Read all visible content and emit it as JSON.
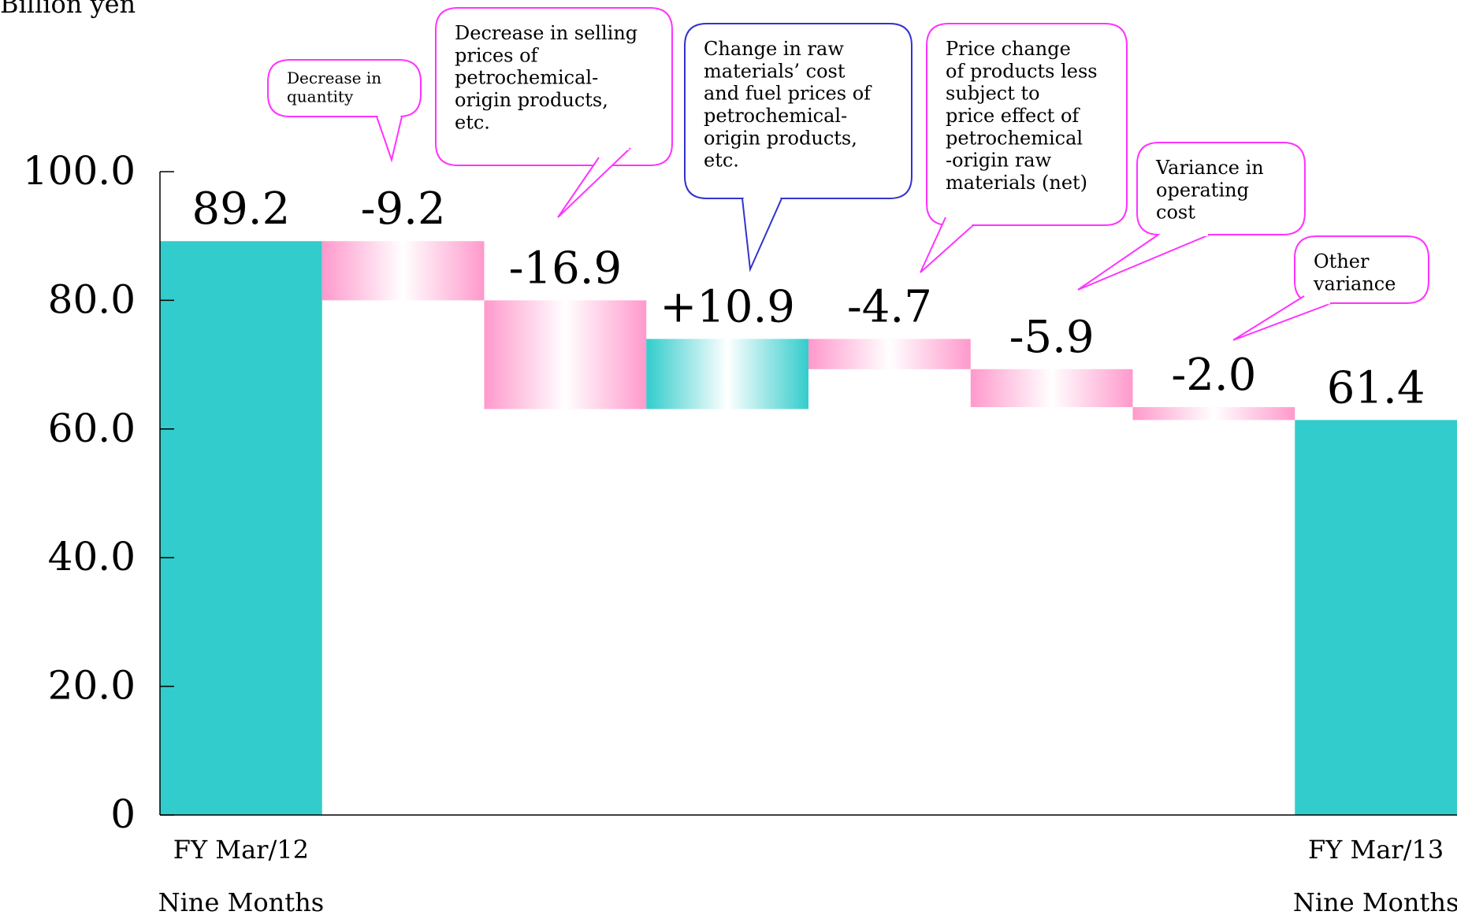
{
  "chart_data": {
    "type": "waterfall",
    "unit_label": "Billion yen",
    "ylim": [
      0,
      100
    ],
    "y_ticks": [
      "0",
      "20.0",
      "40.0",
      "60.0",
      "80.0",
      "100.0"
    ],
    "steps": [
      {
        "label": "89.2",
        "kind": "total",
        "value": 89.2,
        "x1": "FY Mar/12",
        "x2": "Nine Months"
      },
      {
        "label": "-9.2",
        "kind": "decrease",
        "value": -9.2,
        "callout": "Decrease in\nquantity"
      },
      {
        "label": "-16.9",
        "kind": "decrease",
        "value": -16.9,
        "callout": "Decrease in selling\nprices of\npetrochemical-\norigin products,\netc."
      },
      {
        "label": "+10.9",
        "kind": "increase",
        "value": 10.9,
        "callout": "Change in raw\nmaterials’ cost\nand fuel prices of\npetrochemical-\norigin products,\netc."
      },
      {
        "label": "-4.7",
        "kind": "decrease",
        "value": -4.7,
        "callout": "Price change\nof products less\nsubject to\nprice effect of\npetrochemical\n-origin raw\nmaterials (net)"
      },
      {
        "label": "-5.9",
        "kind": "decrease",
        "value": -5.9,
        "callout": "Variance in\noperating\ncost"
      },
      {
        "label": "-2.0",
        "kind": "decrease",
        "value": -2.0,
        "callout": "Other\nvariance"
      },
      {
        "label": "61.4",
        "kind": "total",
        "value": 61.4,
        "x1": "FY Mar/13",
        "x2": "Nine Months"
      }
    ]
  },
  "colors": {
    "total": "#33cccc",
    "decrease": "#ff99cc",
    "increase": "#33cccc",
    "callout_pink": "#ff33ff",
    "callout_blue": "#3333cc"
  }
}
